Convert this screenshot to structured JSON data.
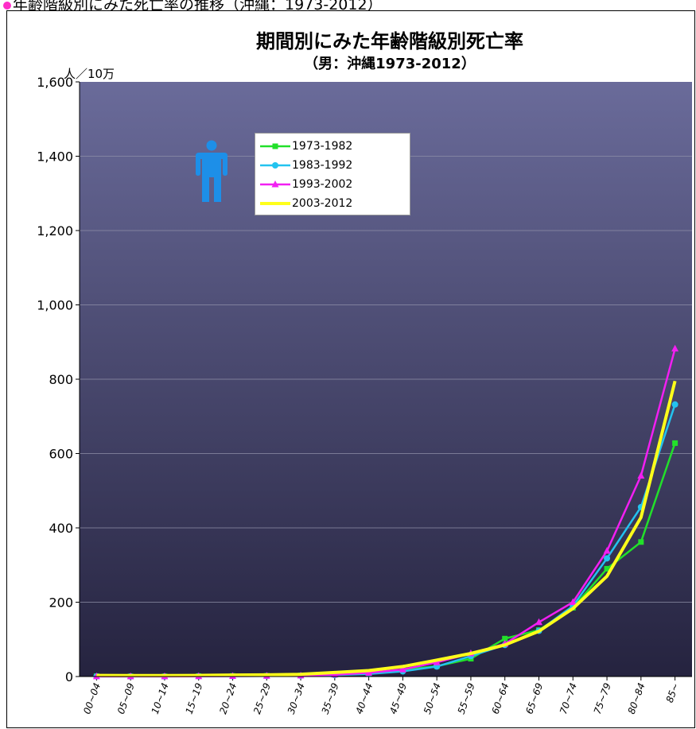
{
  "page_heading": "年齢階級別にみた死亡率の推移（沖縄：1973-2012）",
  "colors": {
    "bg_top": "#6a6b9a",
    "bg_bottom": "#25233f",
    "series": [
      "#22e02a",
      "#23c3ef",
      "#f21ff2",
      "#ffff1a"
    ],
    "person_icon": "#1d8fe8"
  },
  "icons": {
    "person": "person-male-icon"
  },
  "chart_data": {
    "type": "line",
    "title": "期間別にみた年齢階級別死亡率",
    "subtitle": "（男：沖縄1973-2012）",
    "ylabel": "人／10万",
    "xlabel": "",
    "ylim": [
      0,
      1600
    ],
    "yticks": [
      0,
      200,
      400,
      600,
      800,
      1000,
      1200,
      1400,
      1600
    ],
    "ytick_labels": [
      "0",
      "200",
      "400",
      "600",
      "800",
      "1,000",
      "1,200",
      "1,400",
      "1,600"
    ],
    "grid": true,
    "legend_position": "top-center",
    "categories": [
      "00~04",
      "05~09",
      "10~14",
      "15~19",
      "20~24",
      "25~29",
      "30~34",
      "35~39",
      "40~44",
      "45~49",
      "50~54",
      "55~59",
      "60~64",
      "65~69",
      "70~74",
      "75~79",
      "80~84",
      "85~"
    ],
    "series": [
      {
        "name": "1973-1982",
        "marker": "square",
        "values": [
          1,
          0.5,
          0.5,
          1,
          1.5,
          2,
          3,
          5,
          9,
          18,
          28,
          48,
          102,
          125,
          185,
          290,
          362,
          628
        ]
      },
      {
        "name": "1983-1992",
        "marker": "circle",
        "values": [
          0.5,
          0.3,
          0.3,
          0.8,
          1,
          1.5,
          2,
          4,
          7,
          14,
          27,
          55,
          85,
          123,
          190,
          318,
          456,
          732
        ]
      },
      {
        "name": "1993-2002",
        "marker": "triangle",
        "values": [
          0.3,
          0.2,
          0.2,
          0.6,
          1,
          1.5,
          2.5,
          5,
          10,
          19,
          38,
          62,
          88,
          146,
          200,
          338,
          540,
          882
        ]
      },
      {
        "name": "2003-2012",
        "marker": "none",
        "values": [
          3,
          2.5,
          2.5,
          3,
          4,
          4.5,
          6,
          11,
          16,
          27,
          44,
          62,
          85,
          122,
          183,
          270,
          428,
          795
        ]
      }
    ]
  }
}
